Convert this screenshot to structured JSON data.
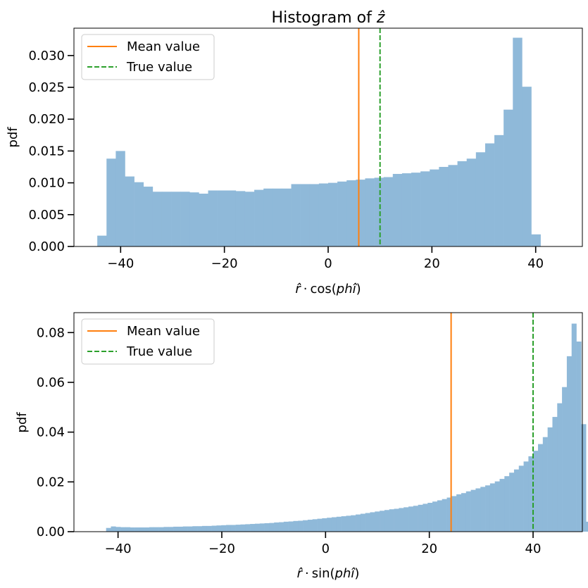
{
  "chart_data": [
    {
      "type": "bar",
      "subtype": "histogram",
      "title": "Histogram of ẑ",
      "title_parts": {
        "pre": "Histogram of ",
        "var": "ẑ"
      },
      "xlabel": "r̂ · cos(phî)",
      "xlabel_parts": {
        "var": "r̂",
        "dot": "·",
        "func": "cos",
        "open": "(",
        "arg": "phî",
        "close": ")"
      },
      "ylabel": "pdf",
      "xlim": [
        -49,
        49
      ],
      "ylim": [
        0,
        0.0343
      ],
      "xticks": [
        -40,
        -20,
        0,
        20,
        40
      ],
      "xtick_labels": [
        "−40",
        "−20",
        "0",
        "20",
        "40"
      ],
      "yticks": [
        0.0,
        0.005,
        0.01,
        0.015,
        0.02,
        0.025,
        0.03
      ],
      "ytick_labels": [
        "0.000",
        "0.005",
        "0.010",
        "0.015",
        "0.020",
        "0.025",
        "0.030"
      ],
      "bin_start": -44.5,
      "bin_width": 1.78,
      "values": [
        0.0017,
        0.0138,
        0.015,
        0.011,
        0.0101,
        0.0094,
        0.0086,
        0.0086,
        0.0086,
        0.0086,
        0.0085,
        0.0083,
        0.0088,
        0.0088,
        0.0088,
        0.0087,
        0.0086,
        0.0089,
        0.0091,
        0.0091,
        0.0091,
        0.0098,
        0.0098,
        0.0098,
        0.0099,
        0.01,
        0.0102,
        0.0104,
        0.0105,
        0.0107,
        0.0108,
        0.0109,
        0.0114,
        0.0115,
        0.0116,
        0.0118,
        0.0121,
        0.0125,
        0.0128,
        0.0134,
        0.0138,
        0.0148,
        0.0162,
        0.0175,
        0.0215,
        0.0328,
        0.0251,
        0.0019
      ],
      "bar_color": "#8fb9d9",
      "mean_value": 5.9,
      "true_value": 10.0,
      "legend": {
        "position": "upper-left",
        "entries": [
          "Mean value",
          "True value"
        ]
      },
      "mean_color": "#ff7f0e",
      "true_color": "#2ca02c",
      "grid": false
    },
    {
      "type": "bar",
      "subtype": "histogram",
      "title": "",
      "xlabel": "r̂ · sin(phî)",
      "xlabel_parts": {
        "var": "r̂",
        "dot": "·",
        "func": "sin",
        "open": "(",
        "arg": "phî",
        "close": ")"
      },
      "ylabel": "pdf",
      "xlim": [
        -48.5,
        49.5
      ],
      "ylim": [
        0,
        0.088
      ],
      "xticks": [
        -40,
        -20,
        0,
        20,
        40
      ],
      "xtick_labels": [
        "−40",
        "−20",
        "0",
        "20",
        "40"
      ],
      "yticks": [
        0.0,
        0.02,
        0.04,
        0.06,
        0.08
      ],
      "ytick_labels": [
        "0.00",
        "0.02",
        "0.04",
        "0.06",
        "0.08"
      ],
      "bin_start": -42.3,
      "bin_width": 0.925,
      "values": [
        0.0015,
        0.0021,
        0.0019,
        0.0018,
        0.0018,
        0.0017,
        0.0017,
        0.0017,
        0.0017,
        0.0018,
        0.0018,
        0.0018,
        0.0019,
        0.0019,
        0.002,
        0.002,
        0.0021,
        0.0021,
        0.0022,
        0.0022,
        0.0023,
        0.0023,
        0.0024,
        0.0025,
        0.0026,
        0.0027,
        0.0027,
        0.0028,
        0.0029,
        0.003,
        0.0031,
        0.0032,
        0.0033,
        0.0034,
        0.0035,
        0.0037,
        0.0038,
        0.004,
        0.0041,
        0.0043,
        0.0044,
        0.0046,
        0.0048,
        0.005,
        0.0052,
        0.0054,
        0.0056,
        0.0058,
        0.006,
        0.0062,
        0.0064,
        0.0066,
        0.0069,
        0.0072,
        0.0075,
        0.0078,
        0.0081,
        0.0084,
        0.0087,
        0.009,
        0.0092,
        0.0095,
        0.0098,
        0.0101,
        0.0104,
        0.0108,
        0.0112,
        0.0116,
        0.0121,
        0.0126,
        0.0131,
        0.0137,
        0.0143,
        0.015,
        0.0155,
        0.0162,
        0.0168,
        0.0174,
        0.018,
        0.0186,
        0.0194,
        0.0202,
        0.0212,
        0.0223,
        0.0237,
        0.025,
        0.0265,
        0.0282,
        0.0303,
        0.0325,
        0.0352,
        0.038,
        0.0419,
        0.0461,
        0.0516,
        0.0581,
        0.0705,
        0.0836,
        0.0764,
        0.0432,
        0.004
      ],
      "bar_color": "#8fb9d9",
      "mean_value": 24.2,
      "true_value": 40.0,
      "legend": {
        "position": "upper-left",
        "entries": [
          "Mean value",
          "True value"
        ]
      },
      "mean_color": "#ff7f0e",
      "true_color": "#2ca02c",
      "grid": false
    }
  ]
}
